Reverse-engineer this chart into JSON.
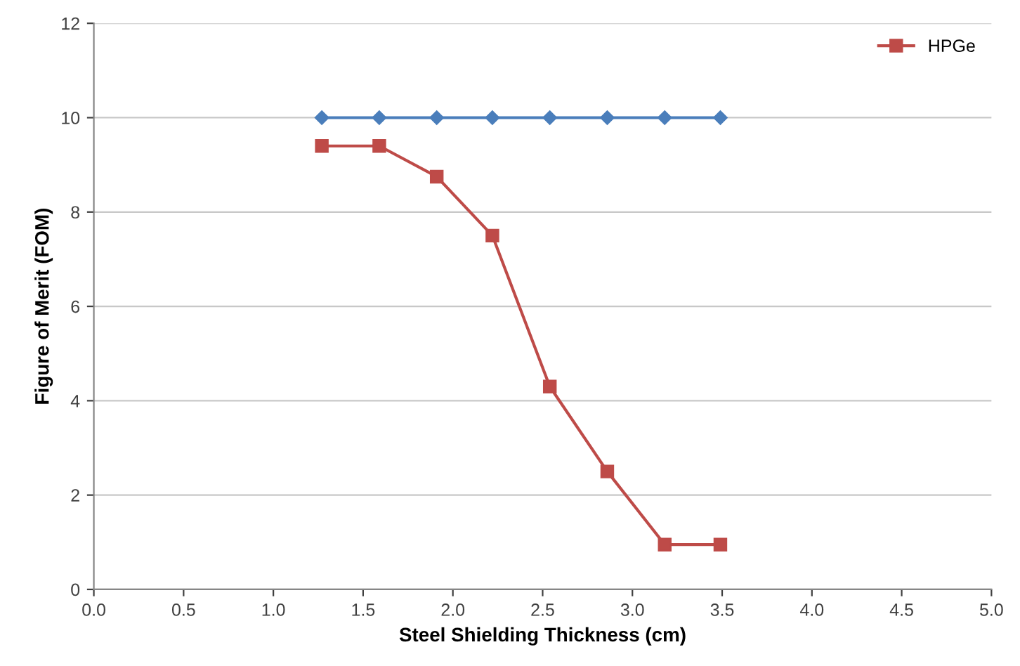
{
  "chart_data": {
    "type": "line",
    "xlabel": "Steel Shielding Thickness (cm)",
    "ylabel": "Figure of Merit (FOM)",
    "x": [
      1.27,
      1.59,
      1.91,
      2.22,
      2.54,
      2.86,
      3.18,
      3.49
    ],
    "series": [
      {
        "color": "#4a7ebb",
        "marker": "diamond",
        "values": [
          10,
          10,
          10,
          10,
          10,
          10,
          10,
          10
        ]
      },
      {
        "name": "HPGe",
        "color": "#be4b48",
        "marker": "square",
        "values": [
          9.4,
          9.4,
          8.75,
          7.5,
          4.3,
          2.5,
          0.95,
          0.95
        ]
      }
    ],
    "xlim": [
      0,
      5
    ],
    "xticks": [
      {
        "value": 0,
        "label": "0.0"
      },
      {
        "value": 0.5,
        "label": "0.5"
      },
      {
        "value": 1,
        "label": "1.0"
      },
      {
        "value": 1.5,
        "label": "1.5"
      },
      {
        "value": 2,
        "label": "2.0"
      },
      {
        "value": 2.5,
        "label": "2.5"
      },
      {
        "value": 3,
        "label": "3.0"
      },
      {
        "value": 3.5,
        "label": "3.5"
      },
      {
        "value": 4,
        "label": "4.0"
      },
      {
        "value": 4.5,
        "label": "4.5"
      },
      {
        "value": 5,
        "label": "5.0"
      }
    ],
    "ylim": [
      0,
      12
    ],
    "yticks": [
      0,
      2,
      4,
      6,
      8,
      10,
      12
    ],
    "grid": "y",
    "legend": "top right",
    "line_style": "solid"
  }
}
